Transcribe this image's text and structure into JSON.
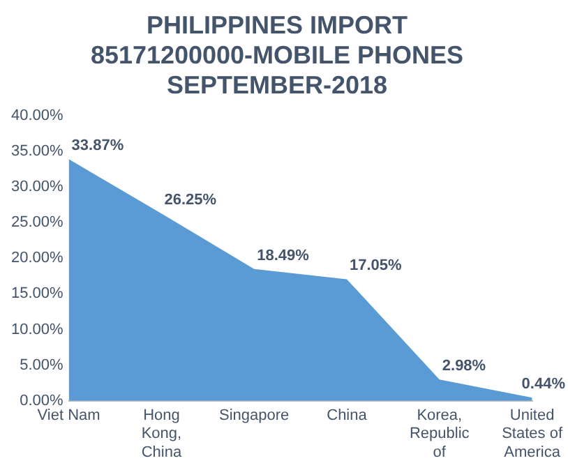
{
  "chart_data": {
    "type": "area",
    "title": "PHILIPPINES IMPORT 85171200000-MOBILE PHONES SEPTEMBER-2018",
    "categories": [
      "Viet Nam",
      "Hong Kong, China",
      "Singapore",
      "China",
      "Korea, Republic of",
      "United States of America"
    ],
    "values": [
      33.87,
      26.25,
      18.49,
      17.05,
      2.98,
      0.44
    ],
    "value_labels": [
      "33.87%",
      "26.25%",
      "18.49%",
      "17.05%",
      "2.98%",
      "0.44%"
    ],
    "color": "#5b9bd5",
    "ylim": [
      0,
      40
    ],
    "yticks": [
      {
        "value": 0,
        "label": "0.00%"
      },
      {
        "value": 5,
        "label": "5.00%"
      },
      {
        "value": 10,
        "label": "10.00%"
      },
      {
        "value": 15,
        "label": "15.00%"
      },
      {
        "value": 20,
        "label": "20.00%"
      },
      {
        "value": 25,
        "label": "25.00%"
      },
      {
        "value": 30,
        "label": "30.00%"
      },
      {
        "value": 35,
        "label": "35.00%"
      },
      {
        "value": 40,
        "label": "40.00%"
      }
    ],
    "grid": false,
    "legend": false
  }
}
